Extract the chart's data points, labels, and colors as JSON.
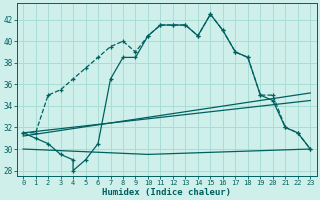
{
  "xlabel": "Humidex (Indice chaleur)",
  "bg_color": "#cff0ea",
  "grid_color": "#a8ddd6",
  "line_color": "#006060",
  "xlim": [
    -0.5,
    23.5
  ],
  "ylim": [
    27.5,
    43.5
  ],
  "xticks": [
    0,
    1,
    2,
    3,
    4,
    5,
    6,
    7,
    8,
    9,
    10,
    11,
    12,
    13,
    14,
    15,
    16,
    17,
    18,
    19,
    20,
    21,
    22,
    23
  ],
  "yticks": [
    28,
    30,
    32,
    34,
    36,
    38,
    40,
    42
  ],
  "curve1_x": [
    0,
    1,
    2,
    3,
    4,
    5,
    6,
    7,
    8,
    9,
    10,
    11,
    12,
    13,
    14,
    15,
    16,
    17,
    18,
    19,
    20,
    21,
    22,
    23
  ],
  "curve1_y": [
    31.5,
    31.5,
    35.0,
    35.5,
    36.5,
    37.5,
    38.5,
    39.5,
    40.0,
    39.0,
    40.5,
    41.5,
    41.5,
    41.5,
    40.5,
    42.5,
    41.0,
    39.0,
    38.5,
    35.0,
    35.0,
    32.0,
    31.5,
    30.0
  ],
  "curve2_x": [
    0,
    1,
    2,
    3,
    4,
    4,
    5,
    6,
    7,
    8,
    9,
    10,
    11,
    12,
    13,
    14,
    15,
    16,
    17,
    18,
    19,
    20,
    21,
    22,
    23
  ],
  "curve2_y": [
    31.5,
    31.0,
    30.5,
    29.5,
    29.0,
    28.0,
    29.0,
    30.5,
    36.5,
    38.5,
    38.5,
    40.5,
    41.5,
    41.5,
    41.5,
    40.5,
    42.5,
    41.0,
    39.0,
    38.5,
    35.0,
    34.5,
    32.0,
    31.5,
    30.0
  ],
  "trend1_x": [
    0,
    23
  ],
  "trend1_y": [
    31.5,
    34.5
  ],
  "trend2_x": [
    0,
    10,
    23
  ],
  "trend2_y": [
    30.0,
    29.5,
    30.0
  ],
  "trend3_x": [
    0,
    23
  ],
  "trend3_y": [
    31.2,
    35.2
  ]
}
